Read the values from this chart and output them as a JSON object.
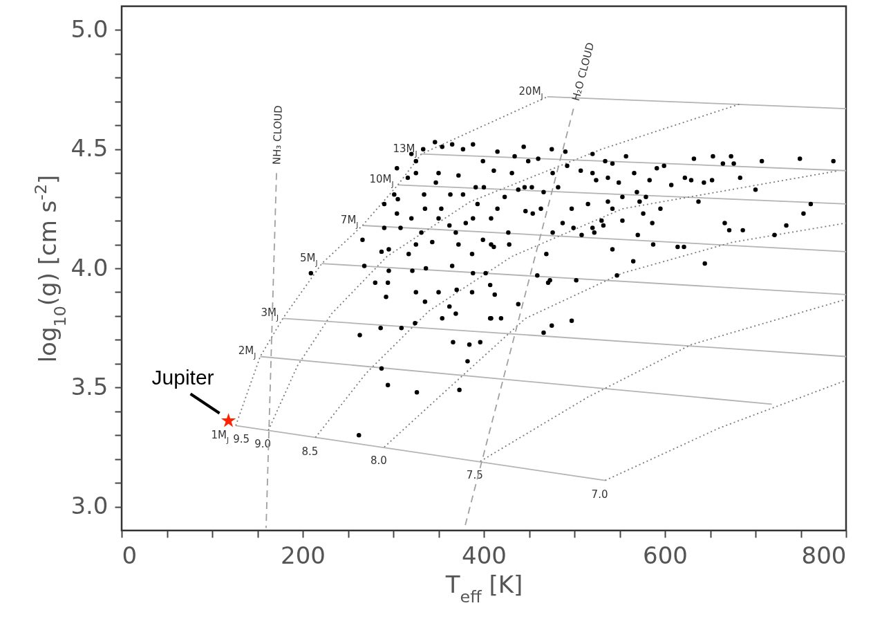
{
  "chart_data": {
    "type": "scatter",
    "xlabel": "T$_{eff}$ [K]",
    "ylabel": "log$_{10}$(g) [cm s$^{-2}$]",
    "xlim": [
      0,
      800
    ],
    "ylim": [
      2.9,
      5.1
    ],
    "xticks": [
      0,
      {
        "value": 50,
        "label": null
      },
      {
        "value": 100,
        "label": null
      },
      {
        "value": 150,
        "label": null
      },
      200,
      {
        "value": 250,
        "label": null
      },
      {
        "value": 300,
        "label": null
      },
      {
        "value": 350,
        "label": null
      },
      400,
      {
        "value": 450,
        "label": null
      },
      {
        "value": 500,
        "label": null
      },
      {
        "value": 550,
        "label": null
      },
      600,
      {
        "value": 650,
        "label": null
      },
      {
        "value": 700,
        "label": null
      },
      {
        "value": 750,
        "label": null
      },
      800
    ],
    "yticks": [
      {
        "value": 3,
        "label": "3.0"
      },
      {
        "value": 3.1,
        "label": null
      },
      {
        "value": 3.2,
        "label": null
      },
      {
        "value": 3.3,
        "label": null
      },
      {
        "value": 3.4,
        "label": null
      },
      {
        "value": 3.5,
        "label": "3.5"
      },
      {
        "value": 3.6,
        "label": null
      },
      {
        "value": 3.7,
        "label": null
      },
      {
        "value": 3.8,
        "label": null
      },
      {
        "value": 3.9,
        "label": null
      },
      {
        "value": 4,
        "label": "4.0"
      },
      {
        "value": 4.1,
        "label": null
      },
      {
        "value": 4.2,
        "label": null
      },
      {
        "value": 4.3,
        "label": null
      },
      {
        "value": 4.4,
        "label": null
      },
      {
        "value": 4.5,
        "label": "4.5"
      },
      {
        "value": 4.6,
        "label": null
      },
      {
        "value": 4.7,
        "label": null
      },
      {
        "value": 4.8,
        "label": null
      },
      {
        "value": 4.9,
        "label": null
      },
      {
        "value": 5,
        "label": "5.0"
      }
    ],
    "series": [
      {
        "name": "20M$_{J}$",
        "type": "line",
        "line_style": "solid",
        "color": "#b4b4b4",
        "x": [
          470,
          800
        ],
        "values": [
          4.72,
          4.67
        ]
      },
      {
        "name": "13M$_{J}$",
        "type": "line",
        "line_style": "solid",
        "color": "#b4b4b4",
        "x": [
          331,
          800
        ],
        "values": [
          4.48,
          4.41
        ]
      },
      {
        "name": "10M$_{J}$",
        "type": "line",
        "line_style": "solid",
        "color": "#b4b4b4",
        "x": [
          305,
          800
        ],
        "values": [
          4.35,
          4.27
        ]
      },
      {
        "name": "7M$_{J}$",
        "type": "line",
        "line_style": "solid",
        "color": "#b4b4b4",
        "x": [
          266,
          800
        ],
        "values": [
          4.18,
          4.07
        ]
      },
      {
        "name": "5M$_{J}$",
        "type": "line",
        "line_style": "solid",
        "color": "#b4b4b4",
        "x": [
          221,
          800
        ],
        "values": [
          4.02,
          3.89
        ]
      },
      {
        "name": "3M$_{J}$",
        "type": "line",
        "line_style": "solid",
        "color": "#b4b4b4",
        "x": [
          178,
          800
        ],
        "values": [
          3.79,
          3.63
        ]
      },
      {
        "name": "2M$_{J}$",
        "type": "line",
        "line_style": "solid",
        "color": "#b4b4b4",
        "x": [
          153,
          718
        ],
        "values": [
          3.63,
          3.43
        ]
      },
      {
        "name": "1M$_{J}$",
        "type": "line",
        "line_style": "solid",
        "color": "#b4b4b4",
        "x": [
          126,
          534
        ],
        "values": [
          3.34,
          3.11
        ]
      },
      {
        "name": "9.5",
        "type": "line",
        "line_style": "dotted",
        "color": "#7a7a7a",
        "x": [
          126,
          153,
          178,
          221,
          266,
          305,
          331,
          470
        ],
        "values": [
          3.34,
          3.63,
          3.79,
          4.02,
          4.18,
          4.35,
          4.48,
          4.72
        ]
      },
      {
        "name": "9.0",
        "type": "line",
        "line_style": "dotted",
        "color": "#7a7a7a",
        "x": [
          162,
          194,
          232,
          293,
          385,
          530,
          683
        ],
        "values": [
          3.32,
          3.59,
          3.81,
          4.05,
          4.28,
          4.5,
          4.69
        ]
      },
      {
        "name": "8.5",
        "type": "line",
        "line_style": "dotted",
        "color": "#7a7a7a",
        "x": [
          214,
          270,
          339,
          431,
          553,
          792
        ],
        "values": [
          3.29,
          3.56,
          3.82,
          4.05,
          4.25,
          4.41
        ]
      },
      {
        "name": "8.0",
        "type": "line",
        "line_style": "dotted",
        "color": "#7a7a7a",
        "x": [
          290,
          362,
          446,
          553,
          675,
          800
        ],
        "values": [
          3.25,
          3.5,
          3.79,
          3.98,
          4.11,
          4.19
        ]
      },
      {
        "name": "7.5",
        "type": "line",
        "line_style": "dotted",
        "color": "#7a7a7a",
        "x": [
          396,
          515,
          629,
          800
        ],
        "values": [
          3.19,
          3.46,
          3.68,
          3.87
        ]
      },
      {
        "name": "7.0",
        "type": "line",
        "line_style": "dotted",
        "color": "#7a7a7a",
        "x": [
          534,
          660,
          800
        ],
        "values": [
          3.11,
          3.33,
          3.53
        ]
      },
      {
        "name": "NH₃ CLOUD",
        "type": "line",
        "line_style": "dashed",
        "color": "#a0a0a0",
        "x": [
          171,
          159.5
        ],
        "values": [
          4.4,
          2.91
        ]
      },
      {
        "name": "H₂O CLOUD",
        "type": "line",
        "line_style": "dashed",
        "color": "#a0a0a0",
        "x": [
          499,
          378.6
        ],
        "values": [
          4.67,
          2.91
        ]
      },
      {
        "type": "scatter",
        "marker": "circle",
        "color": "#000000",
        "x": [
          444,
          475,
          490,
          520,
          534,
          542,
          520,
          524,
          537,
          549,
          566,
          591,
          607,
          622,
          632,
          643,
          653,
          664,
          676,
          683,
          700,
          749,
          786,
          569,
          579,
          497,
          515,
          542,
          487,
          520,
          532,
          508,
          570,
          586,
          666,
          671,
          686,
          721,
          734,
          753,
          761,
          542,
          621,
          565,
          644,
          469,
          459,
          473,
          502,
          547,
          428,
          408,
          463,
          454,
          445,
          482,
          466,
          460,
          449,
          471,
          438,
          408,
          419,
          497,
          475,
          466,
          412,
          209,
          268,
          295,
          321,
          336,
          365,
          388,
          402,
          280,
          294,
          292,
          325,
          350,
          370,
          387,
          335,
          362,
          369,
          354,
          324,
          407,
          407,
          263,
          286,
          309,
          366,
          384,
          396,
          382,
          287,
          294,
          326,
          373,
          262,
          266,
          287,
          295,
          317,
          325,
          343,
          372,
          387,
          399,
          411,
          335,
          320,
          290,
          304,
          353,
          362,
          380,
          350,
          388,
          301,
          305,
          290,
          304,
          325,
          334,
          325,
          346,
          365,
          388,
          350,
          347,
          372,
          377,
          391,
          393,
          399,
          411,
          363,
          320,
          415,
          431,
          423,
          408,
          427,
          446,
          434,
          400,
          415,
          369,
          333,
          377,
          354,
          316,
          331,
          308,
          476,
          492,
          507,
          476,
          499,
          553,
          576,
          595,
          537,
          553,
          572,
          583,
          629,
          652,
          637,
          673,
          707,
          522,
          587,
          614,
          599,
          557,
          530,
          438,
          453
        ],
        "values": [
          4.51,
          4.5,
          4.49,
          4.48,
          4.45,
          4.44,
          4.4,
          4.37,
          4.38,
          4.36,
          4.4,
          4.42,
          4.35,
          4.38,
          4.46,
          4.36,
          4.47,
          4.44,
          4.44,
          4.38,
          4.33,
          4.46,
          4.45,
          4.32,
          4.3,
          4.25,
          4.27,
          4.25,
          4.19,
          4.17,
          4.18,
          4.14,
          4.14,
          4.19,
          4.19,
          4.16,
          4.16,
          4.14,
          4.18,
          4.23,
          4.27,
          4.08,
          4.09,
          4.03,
          4.02,
          4.06,
          3.97,
          3.95,
          3.95,
          3.97,
          4.1,
          4.1,
          4.25,
          4.23,
          4.34,
          4.34,
          4.32,
          4.46,
          4.45,
          3.94,
          3.85,
          3.79,
          3.79,
          3.78,
          3.76,
          3.73,
          3.89,
          3.98,
          4.01,
          3.99,
          3.99,
          4,
          4.01,
          3.98,
          3.98,
          3.94,
          3.94,
          3.88,
          3.9,
          3.9,
          3.91,
          3.9,
          3.86,
          3.84,
          3.81,
          3.79,
          3.77,
          3.93,
          3.79,
          3.72,
          3.75,
          3.75,
          3.69,
          3.68,
          3.69,
          3.61,
          3.58,
          3.51,
          3.48,
          3.49,
          3.3,
          4.12,
          4.07,
          4.08,
          4.06,
          4.1,
          4.11,
          4.1,
          4.06,
          4.12,
          4.09,
          4.25,
          4.21,
          4.17,
          4.23,
          4.25,
          4.18,
          4.19,
          4.21,
          4.21,
          4.31,
          4.29,
          4.27,
          4.42,
          4.4,
          4.31,
          4.45,
          4.53,
          4.52,
          4.52,
          4.4,
          4.36,
          4.39,
          4.31,
          4.34,
          4.27,
          4.45,
          4.41,
          4.31,
          4.48,
          4.49,
          4.4,
          4.3,
          4.21,
          4.15,
          4.24,
          4.47,
          4.34,
          4.25,
          4.15,
          4.5,
          4.5,
          4.51,
          4.38,
          4.15,
          4.17,
          4.4,
          4.43,
          4.41,
          4.15,
          4.17,
          4.2,
          4.23,
          4.25,
          4.28,
          4.3,
          4.28,
          4.37,
          4.37,
          4.37,
          4.28,
          4.47,
          4.45,
          4.15,
          4.1,
          4.09,
          4.43,
          4.47,
          4.2,
          4.33,
          4.34
        ]
      },
      {
        "name": "Jupiter",
        "type": "scatter",
        "marker": "star",
        "color": "#ff2200",
        "x": [
          118
        ],
        "values": [
          3.36
        ]
      }
    ]
  }
}
